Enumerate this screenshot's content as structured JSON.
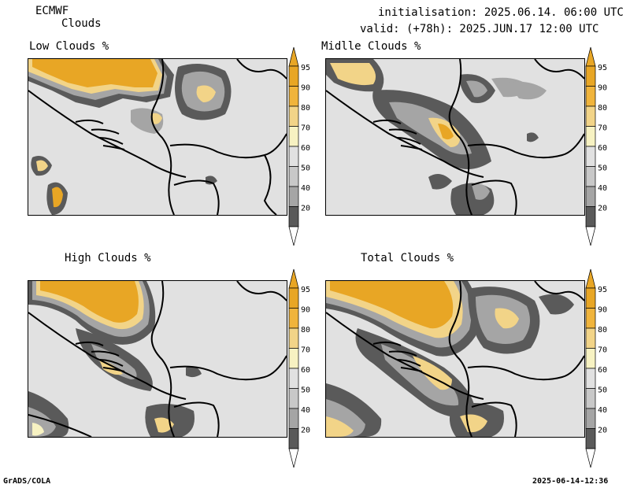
{
  "header": {
    "model": "ECMWF",
    "product": "Clouds",
    "init_line": "initialisation: 2025.06.14. 06:00 UTC",
    "valid_line": "valid: (+78h): 2025.JUN.17 12:00 UTC"
  },
  "panels": [
    {
      "title": "Low Clouds %"
    },
    {
      "title": "Midlle Clouds %"
    },
    {
      "title": "High Clouds %"
    },
    {
      "title": "Total Clouds %"
    }
  ],
  "colorbar": {
    "labels": [
      "95",
      "90",
      "80",
      "70",
      "60",
      "50",
      "40",
      "20"
    ],
    "colors": {
      "c95": "#e8a625",
      "c90": "#f0b43c",
      "c80": "#f2d488",
      "c70": "#f7f2c2",
      "c60": "#e1e1e1",
      "c50": "#c8c8c8",
      "c40": "#a5a5a5",
      "c20": "#5a5a5a"
    }
  },
  "footer": {
    "left": "GrADS/COLA",
    "right": "2025-06-14-12:36"
  }
}
